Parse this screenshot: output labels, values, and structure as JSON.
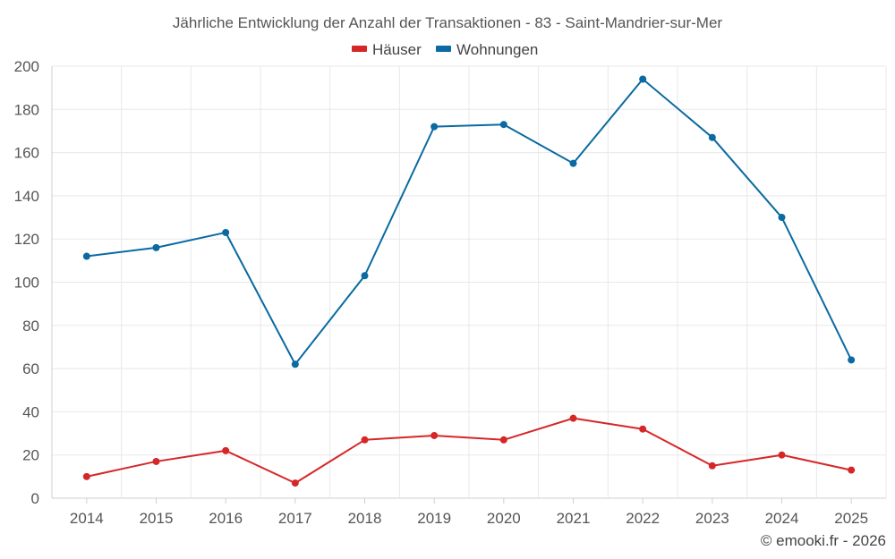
{
  "chart_data": {
    "type": "line",
    "title": "Jährliche Entwicklung der Anzahl der Transaktionen - 83 - Saint-Mandrier-sur-Mer",
    "xlabel": "",
    "ylabel": "",
    "categories": [
      "2014",
      "2015",
      "2016",
      "2017",
      "2018",
      "2019",
      "2020",
      "2021",
      "2022",
      "2023",
      "2024",
      "2025"
    ],
    "ylim": [
      0,
      200
    ],
    "yticks": [
      0,
      20,
      40,
      60,
      80,
      100,
      120,
      140,
      160,
      180,
      200
    ],
    "grid": true,
    "legend_position": "top-center",
    "series": [
      {
        "name": "Häuser",
        "color": "#d62728",
        "values": [
          10,
          17,
          22,
          7,
          27,
          29,
          27,
          37,
          32,
          15,
          20,
          13
        ]
      },
      {
        "name": "Wohnungen",
        "color": "#0a6aa1",
        "values": [
          112,
          116,
          123,
          62,
          103,
          172,
          173,
          155,
          194,
          167,
          130,
          64
        ]
      }
    ]
  },
  "credit": "© emooki.fr - 2026"
}
